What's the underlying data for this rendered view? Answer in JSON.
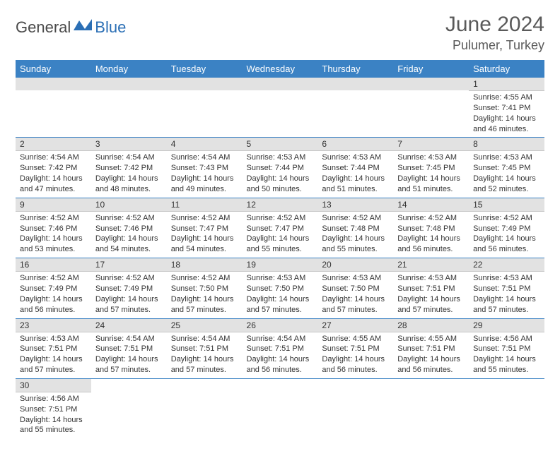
{
  "logo": {
    "general": "General",
    "blue": "Blue"
  },
  "title": "June 2024",
  "location": "Pulumer, Turkey",
  "colors": {
    "header_bg": "#3b82c4",
    "header_text": "#ffffff",
    "daynum_bg": "#e2e2e2",
    "text": "#333333",
    "title_text": "#5a5a5a",
    "row_divider": "#3b82c4"
  },
  "weekdays": [
    "Sunday",
    "Monday",
    "Tuesday",
    "Wednesday",
    "Thursday",
    "Friday",
    "Saturday"
  ],
  "weeks": [
    [
      null,
      null,
      null,
      null,
      null,
      null,
      {
        "n": "1",
        "sr": "Sunrise: 4:55 AM",
        "ss": "Sunset: 7:41 PM",
        "d1": "Daylight: 14 hours",
        "d2": "and 46 minutes."
      }
    ],
    [
      {
        "n": "2",
        "sr": "Sunrise: 4:54 AM",
        "ss": "Sunset: 7:42 PM",
        "d1": "Daylight: 14 hours",
        "d2": "and 47 minutes."
      },
      {
        "n": "3",
        "sr": "Sunrise: 4:54 AM",
        "ss": "Sunset: 7:42 PM",
        "d1": "Daylight: 14 hours",
        "d2": "and 48 minutes."
      },
      {
        "n": "4",
        "sr": "Sunrise: 4:54 AM",
        "ss": "Sunset: 7:43 PM",
        "d1": "Daylight: 14 hours",
        "d2": "and 49 minutes."
      },
      {
        "n": "5",
        "sr": "Sunrise: 4:53 AM",
        "ss": "Sunset: 7:44 PM",
        "d1": "Daylight: 14 hours",
        "d2": "and 50 minutes."
      },
      {
        "n": "6",
        "sr": "Sunrise: 4:53 AM",
        "ss": "Sunset: 7:44 PM",
        "d1": "Daylight: 14 hours",
        "d2": "and 51 minutes."
      },
      {
        "n": "7",
        "sr": "Sunrise: 4:53 AM",
        "ss": "Sunset: 7:45 PM",
        "d1": "Daylight: 14 hours",
        "d2": "and 51 minutes."
      },
      {
        "n": "8",
        "sr": "Sunrise: 4:53 AM",
        "ss": "Sunset: 7:45 PM",
        "d1": "Daylight: 14 hours",
        "d2": "and 52 minutes."
      }
    ],
    [
      {
        "n": "9",
        "sr": "Sunrise: 4:52 AM",
        "ss": "Sunset: 7:46 PM",
        "d1": "Daylight: 14 hours",
        "d2": "and 53 minutes."
      },
      {
        "n": "10",
        "sr": "Sunrise: 4:52 AM",
        "ss": "Sunset: 7:46 PM",
        "d1": "Daylight: 14 hours",
        "d2": "and 54 minutes."
      },
      {
        "n": "11",
        "sr": "Sunrise: 4:52 AM",
        "ss": "Sunset: 7:47 PM",
        "d1": "Daylight: 14 hours",
        "d2": "and 54 minutes."
      },
      {
        "n": "12",
        "sr": "Sunrise: 4:52 AM",
        "ss": "Sunset: 7:47 PM",
        "d1": "Daylight: 14 hours",
        "d2": "and 55 minutes."
      },
      {
        "n": "13",
        "sr": "Sunrise: 4:52 AM",
        "ss": "Sunset: 7:48 PM",
        "d1": "Daylight: 14 hours",
        "d2": "and 55 minutes."
      },
      {
        "n": "14",
        "sr": "Sunrise: 4:52 AM",
        "ss": "Sunset: 7:48 PM",
        "d1": "Daylight: 14 hours",
        "d2": "and 56 minutes."
      },
      {
        "n": "15",
        "sr": "Sunrise: 4:52 AM",
        "ss": "Sunset: 7:49 PM",
        "d1": "Daylight: 14 hours",
        "d2": "and 56 minutes."
      }
    ],
    [
      {
        "n": "16",
        "sr": "Sunrise: 4:52 AM",
        "ss": "Sunset: 7:49 PM",
        "d1": "Daylight: 14 hours",
        "d2": "and 56 minutes."
      },
      {
        "n": "17",
        "sr": "Sunrise: 4:52 AM",
        "ss": "Sunset: 7:49 PM",
        "d1": "Daylight: 14 hours",
        "d2": "and 57 minutes."
      },
      {
        "n": "18",
        "sr": "Sunrise: 4:52 AM",
        "ss": "Sunset: 7:50 PM",
        "d1": "Daylight: 14 hours",
        "d2": "and 57 minutes."
      },
      {
        "n": "19",
        "sr": "Sunrise: 4:53 AM",
        "ss": "Sunset: 7:50 PM",
        "d1": "Daylight: 14 hours",
        "d2": "and 57 minutes."
      },
      {
        "n": "20",
        "sr": "Sunrise: 4:53 AM",
        "ss": "Sunset: 7:50 PM",
        "d1": "Daylight: 14 hours",
        "d2": "and 57 minutes."
      },
      {
        "n": "21",
        "sr": "Sunrise: 4:53 AM",
        "ss": "Sunset: 7:51 PM",
        "d1": "Daylight: 14 hours",
        "d2": "and 57 minutes."
      },
      {
        "n": "22",
        "sr": "Sunrise: 4:53 AM",
        "ss": "Sunset: 7:51 PM",
        "d1": "Daylight: 14 hours",
        "d2": "and 57 minutes."
      }
    ],
    [
      {
        "n": "23",
        "sr": "Sunrise: 4:53 AM",
        "ss": "Sunset: 7:51 PM",
        "d1": "Daylight: 14 hours",
        "d2": "and 57 minutes."
      },
      {
        "n": "24",
        "sr": "Sunrise: 4:54 AM",
        "ss": "Sunset: 7:51 PM",
        "d1": "Daylight: 14 hours",
        "d2": "and 57 minutes."
      },
      {
        "n": "25",
        "sr": "Sunrise: 4:54 AM",
        "ss": "Sunset: 7:51 PM",
        "d1": "Daylight: 14 hours",
        "d2": "and 57 minutes."
      },
      {
        "n": "26",
        "sr": "Sunrise: 4:54 AM",
        "ss": "Sunset: 7:51 PM",
        "d1": "Daylight: 14 hours",
        "d2": "and 56 minutes."
      },
      {
        "n": "27",
        "sr": "Sunrise: 4:55 AM",
        "ss": "Sunset: 7:51 PM",
        "d1": "Daylight: 14 hours",
        "d2": "and 56 minutes."
      },
      {
        "n": "28",
        "sr": "Sunrise: 4:55 AM",
        "ss": "Sunset: 7:51 PM",
        "d1": "Daylight: 14 hours",
        "d2": "and 56 minutes."
      },
      {
        "n": "29",
        "sr": "Sunrise: 4:56 AM",
        "ss": "Sunset: 7:51 PM",
        "d1": "Daylight: 14 hours",
        "d2": "and 55 minutes."
      }
    ],
    [
      {
        "n": "30",
        "sr": "Sunrise: 4:56 AM",
        "ss": "Sunset: 7:51 PM",
        "d1": "Daylight: 14 hours",
        "d2": "and 55 minutes."
      },
      null,
      null,
      null,
      null,
      null,
      null
    ]
  ]
}
